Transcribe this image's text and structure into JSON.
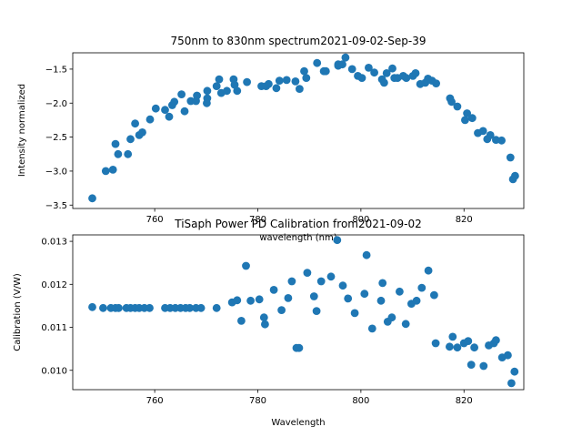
{
  "chart_data": [
    {
      "type": "scatter",
      "title": "750nm to 830nm spectrum2021-09-02-Sep-39",
      "xlabel": "wavelength (nm)",
      "ylabel": "Intensity normalized",
      "xlim": [
        744.1,
        831.6
      ],
      "ylim": [
        -3.55,
        -1.26
      ],
      "xticks": [
        760,
        780,
        800,
        820
      ],
      "yticks": [
        -3.5,
        -3.0,
        -2.5,
        -2.0,
        -1.5
      ],
      "color": "#1f77b4",
      "x": [
        747.9,
        750.5,
        751.9,
        752.4,
        752.9,
        754.8,
        755.3,
        756.2,
        757.0,
        757.6,
        759.1,
        760.2,
        762.0,
        762.8,
        763.4,
        763.8,
        765.2,
        765.8,
        767.0,
        768.0,
        768.2,
        770.1,
        770.2,
        770.2,
        772.0,
        772.5,
        772.9,
        774.0,
        775.3,
        775.5,
        776.0,
        777.9,
        780.7,
        781.6,
        782.1,
        783.6,
        784.2,
        785.6,
        787.3,
        788.1,
        789.0,
        789.4,
        791.5,
        792.8,
        793.2,
        795.6,
        795.6,
        796.4,
        797.0,
        798.3,
        799.4,
        800.2,
        801.5,
        802.6,
        804.1,
        804.5,
        805.0,
        806.1,
        806.5,
        807.1,
        808.2,
        808.8,
        810.1,
        810.6,
        811.5,
        812.5,
        813.0,
        813.8,
        814.6,
        817.3,
        817.6,
        818.7,
        820.2,
        820.6,
        821.6,
        822.7,
        823.7,
        824.5,
        825.1,
        826.2,
        827.3,
        829.0,
        829.5,
        829.9
      ],
      "y": [
        -3.4,
        -3.0,
        -2.98,
        -2.6,
        -2.75,
        -2.75,
        -2.53,
        -2.3,
        -2.47,
        -2.43,
        -2.24,
        -2.08,
        -2.1,
        -2.2,
        -2.03,
        -1.98,
        -1.87,
        -2.12,
        -1.97,
        -1.97,
        -1.89,
        -2.0,
        -1.93,
        -1.82,
        -1.75,
        -1.65,
        -1.85,
        -1.82,
        -1.65,
        -1.73,
        -1.82,
        -1.69,
        -1.75,
        -1.75,
        -1.72,
        -1.78,
        -1.67,
        -1.66,
        -1.68,
        -1.79,
        -1.53,
        -1.63,
        -1.41,
        -1.53,
        -1.53,
        -1.43,
        -1.45,
        -1.43,
        -1.33,
        -1.5,
        -1.6,
        -1.63,
        -1.48,
        -1.55,
        -1.65,
        -1.7,
        -1.56,
        -1.49,
        -1.63,
        -1.63,
        -1.6,
        -1.63,
        -1.6,
        -1.56,
        -1.72,
        -1.7,
        -1.64,
        -1.67,
        -1.71,
        -1.93,
        -1.98,
        -2.05,
        -2.25,
        -2.15,
        -2.22,
        -2.44,
        -2.41,
        -2.53,
        -2.47,
        -2.54,
        -2.55,
        -2.8,
        -3.12,
        -3.07
      ]
    },
    {
      "type": "scatter",
      "title": "TiSaph Power PD Calibration from2021-09-02",
      "xlabel": "Wavelength",
      "ylabel": "Calibration (V/W)",
      "xlim": [
        744.1,
        831.6
      ],
      "ylim": [
        0.00955,
        0.01315
      ],
      "xticks": [
        760,
        780,
        800,
        820
      ],
      "yticks": [
        0.01,
        0.011,
        0.012,
        0.013
      ],
      "ytick_labels": [
        "0.010",
        "0.011",
        "0.012",
        "0.013"
      ],
      "color": "#1f77b4",
      "x": [
        747.9,
        750.0,
        751.5,
        752.4,
        753.0,
        754.5,
        755.3,
        756.2,
        757.0,
        758.0,
        759.0,
        762.0,
        763.0,
        764.0,
        765.0,
        766.0,
        766.8,
        768.0,
        769.0,
        772.0,
        775.0,
        776.0,
        776.8,
        777.7,
        778.6,
        780.3,
        781.2,
        781.4,
        783.1,
        784.6,
        785.9,
        786.6,
        787.5,
        788.0,
        789.6,
        790.9,
        791.4,
        792.3,
        794.2,
        795.4,
        796.5,
        797.5,
        798.8,
        800.7,
        801.1,
        802.2,
        803.9,
        804.2,
        805.2,
        806.0,
        807.5,
        808.7,
        809.8,
        810.8,
        811.8,
        813.1,
        814.2,
        814.5,
        817.2,
        817.8,
        818.7,
        820.0,
        820.8,
        821.4,
        822.0,
        823.8,
        824.8,
        825.8,
        826.2,
        827.4,
        828.5,
        829.2,
        829.8
      ],
      "y": [
        0.01147,
        0.01145,
        0.01145,
        0.01145,
        0.01145,
        0.01145,
        0.01145,
        0.01145,
        0.01145,
        0.01145,
        0.01145,
        0.01145,
        0.01145,
        0.01145,
        0.01145,
        0.01145,
        0.01145,
        0.01145,
        0.01145,
        0.01145,
        0.01158,
        0.01163,
        0.01115,
        0.01243,
        0.01162,
        0.01165,
        0.01123,
        0.01107,
        0.01187,
        0.0114,
        0.01168,
        0.01207,
        0.01052,
        0.01052,
        0.01227,
        0.01172,
        0.01138,
        0.01207,
        0.01218,
        0.01303,
        0.01197,
        0.01167,
        0.01133,
        0.01178,
        0.01268,
        0.01097,
        0.01162,
        0.01203,
        0.01113,
        0.01123,
        0.01183,
        0.01108,
        0.01155,
        0.01162,
        0.01192,
        0.01232,
        0.01175,
        0.01063,
        0.01055,
        0.01078,
        0.01053,
        0.01063,
        0.01068,
        0.01013,
        0.01053,
        0.0101,
        0.01058,
        0.01063,
        0.0107,
        0.0103,
        0.01035,
        0.0097,
        0.00997
      ]
    }
  ]
}
